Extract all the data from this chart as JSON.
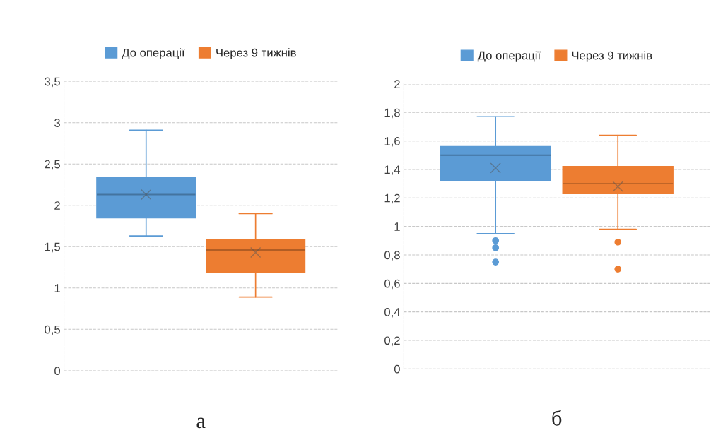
{
  "chart_data": [
    {
      "type": "box",
      "categories": [
        null
      ],
      "legend": "top",
      "grid": "y",
      "marker": "circle",
      "ylim": [
        0,
        3.5
      ],
      "yticks": [
        0,
        {
          "value": 0.5,
          "label": "0,5"
        },
        1,
        {
          "value": 1.5,
          "label": "1,5"
        },
        2,
        {
          "value": 2.5,
          "label": "2,5"
        },
        3,
        {
          "value": 3.5,
          "label": "3,5"
        }
      ],
      "series": [
        {
          "name": "До операції",
          "color": "#5b9bd5",
          "boxes": [
            {
              "low": 1.63,
              "q1": 1.85,
              "median": 2.13,
              "q3": 2.34,
              "high": 2.91,
              "mean": 2.13
            }
          ]
        },
        {
          "name": "Через 9 тижнів",
          "color": "#ed7d31",
          "boxes": [
            {
              "low": 0.89,
              "q1": 1.19,
              "median": 1.46,
              "q3": 1.58,
              "high": 1.9,
              "mean": 1.43
            }
          ]
        }
      ],
      "annotations": [
        "а"
      ]
    },
    {
      "type": "box",
      "categories": [
        null
      ],
      "legend": "top",
      "grid": "y",
      "marker": "circle",
      "ylim": [
        0,
        2
      ],
      "yticks": [
        0,
        {
          "value": 0.2,
          "label": "0,2"
        },
        {
          "value": 0.4,
          "label": "0,4"
        },
        {
          "value": 0.6,
          "label": "0,6"
        },
        {
          "value": 0.8,
          "label": "0,8"
        },
        1,
        {
          "value": 1.2,
          "label": "1,2"
        },
        {
          "value": 1.4,
          "label": "1,4"
        },
        {
          "value": 1.6,
          "label": "1,6"
        },
        {
          "value": 1.8,
          "label": "1,8"
        },
        2
      ],
      "series": [
        {
          "name": "До операції",
          "color": "#5b9bd5",
          "boxes": [
            {
              "low": 0.95,
              "q1": 1.32,
              "median": 1.5,
              "q3": 1.56,
              "high": 1.77,
              "mean": 1.41,
              "outliers": [
                0.9,
                0.85,
                0.75
              ]
            }
          ]
        },
        {
          "name": "Через 9 тижнів",
          "color": "#ed7d31",
          "boxes": [
            {
              "low": 0.98,
              "q1": 1.23,
              "median": 1.3,
              "q3": 1.42,
              "high": 1.64,
              "mean": 1.28,
              "outliers": [
                0.89,
                0.7
              ]
            }
          ]
        }
      ],
      "annotations": [
        "б"
      ]
    }
  ]
}
